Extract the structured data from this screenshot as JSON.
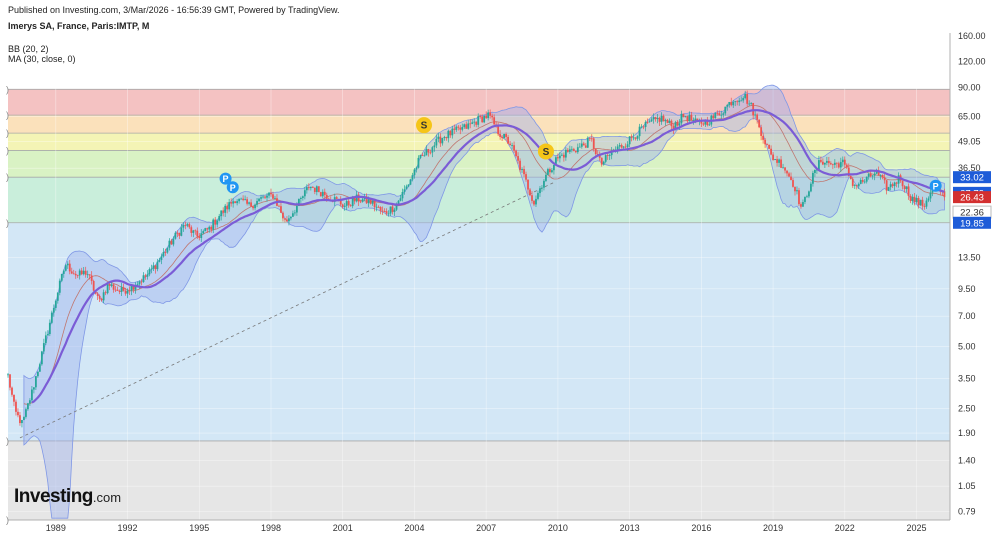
{
  "header": {
    "published": "Published on Investing.com, 3/Mar/2026 - 16:56:39 GMT, Powered by TradingView.",
    "symbol": "Imerys SA, France, Paris:IMTP, M",
    "indicators": [
      "BB (20, 2)",
      "MA (30, close, 0)"
    ]
  },
  "logo": {
    "text": "Investing",
    "suffix": ".com"
  },
  "colors": {
    "candle_up": "#26a69a",
    "candle_down": "#ef5350",
    "ma_line": "#7b5cd6",
    "bb_fill": "#9fb3ee",
    "bb_line": "#7f97e6",
    "trendline": "#777777",
    "badge_price": "#d32f2f",
    "badge_blue": "#1e5cd8",
    "signal_s": "#f5c518",
    "signal_p": "#2196f3"
  },
  "chart_data": {
    "type": "candlestick",
    "y_scale": "log",
    "ylim": [
      0.72,
      165
    ],
    "x_range": [
      1987.0,
      2026.4
    ],
    "x_ticks": [
      "1989",
      "1992",
      "1995",
      "1998",
      "2001",
      "2004",
      "2007",
      "2010",
      "2013",
      "2016",
      "2019",
      "2022",
      "2025"
    ],
    "x_tick_values": [
      1989,
      1992,
      1995,
      1998,
      2001,
      2004,
      2007,
      2010,
      2013,
      2016,
      2019,
      2022,
      2025
    ],
    "y_ticks": [
      "160.00",
      "120.00",
      "90.00",
      "65.00",
      "49.05",
      "36.50",
      "13.50",
      "9.50",
      "7.00",
      "5.00",
      "3.50",
      "2.50",
      "1.90",
      "1.40",
      "1.05",
      "0.79"
    ],
    "y_tick_values": [
      160,
      120,
      90,
      65,
      49.05,
      36.5,
      13.5,
      9.5,
      7,
      5,
      3.5,
      2.5,
      1.9,
      1.4,
      1.05,
      0.79
    ],
    "price_path": [
      [
        1987.0,
        3.6
      ],
      [
        1987.3,
        2.4
      ],
      [
        1987.6,
        2.1
      ],
      [
        1988.0,
        3.0
      ],
      [
        1988.5,
        5.0
      ],
      [
        1989.0,
        8.5
      ],
      [
        1989.4,
        12.5
      ],
      [
        1989.9,
        11.0
      ],
      [
        1990.3,
        11.5
      ],
      [
        1990.8,
        8.2
      ],
      [
        1991.2,
        10.0
      ],
      [
        1991.7,
        9.2
      ],
      [
        1992.2,
        9.8
      ],
      [
        1992.8,
        11.0
      ],
      [
        1993.3,
        13.0
      ],
      [
        1993.9,
        16.5
      ],
      [
        1994.4,
        19.5
      ],
      [
        1994.9,
        17.0
      ],
      [
        1995.4,
        18.5
      ],
      [
        1995.9,
        22.0
      ],
      [
        1996.5,
        26.0
      ],
      [
        1997.1,
        24.0
      ],
      [
        1997.6,
        26.0
      ],
      [
        1998.1,
        27.0
      ],
      [
        1998.6,
        20.0
      ],
      [
        1999.1,
        24.0
      ],
      [
        1999.6,
        30.0
      ],
      [
        2000.1,
        28.0
      ],
      [
        2000.6,
        26.0
      ],
      [
        2001.1,
        24.0
      ],
      [
        2001.6,
        26.0
      ],
      [
        2002.2,
        25.0
      ],
      [
        2002.7,
        22.0
      ],
      [
        2003.2,
        24.0
      ],
      [
        2003.7,
        30.0
      ],
      [
        2004.2,
        40.0
      ],
      [
        2004.7,
        46.0
      ],
      [
        2005.2,
        52.0
      ],
      [
        2005.7,
        55.0
      ],
      [
        2006.2,
        58.0
      ],
      [
        2006.7,
        63.0
      ],
      [
        2007.1,
        66.0
      ],
      [
        2007.5,
        55.0
      ],
      [
        2008.0,
        48.0
      ],
      [
        2008.5,
        35.0
      ],
      [
        2009.0,
        25.0
      ],
      [
        2009.4,
        32.0
      ],
      [
        2009.9,
        40.0
      ],
      [
        2010.4,
        44.0
      ],
      [
        2010.9,
        46.0
      ],
      [
        2011.4,
        50.0
      ],
      [
        2011.8,
        38.0
      ],
      [
        2012.3,
        44.0
      ],
      [
        2012.8,
        48.0
      ],
      [
        2013.3,
        54.0
      ],
      [
        2013.8,
        60.0
      ],
      [
        2014.3,
        64.0
      ],
      [
        2014.8,
        58.0
      ],
      [
        2015.3,
        66.0
      ],
      [
        2015.8,
        60.0
      ],
      [
        2016.3,
        62.0
      ],
      [
        2016.8,
        68.0
      ],
      [
        2017.3,
        78.0
      ],
      [
        2017.8,
        82.0
      ],
      [
        2018.1,
        72.0
      ],
      [
        2018.5,
        55.0
      ],
      [
        2018.9,
        42.0
      ],
      [
        2019.4,
        38.0
      ],
      [
        2019.9,
        30.0
      ],
      [
        2020.2,
        23.0
      ],
      [
        2020.6,
        32.0
      ],
      [
        2021.0,
        40.0
      ],
      [
        2021.5,
        38.0
      ],
      [
        2021.9,
        39.0
      ],
      [
        2022.4,
        30.0
      ],
      [
        2022.9,
        32.0
      ],
      [
        2023.3,
        35.0
      ],
      [
        2023.8,
        29.0
      ],
      [
        2024.3,
        33.0
      ],
      [
        2024.8,
        26.0
      ],
      [
        2025.3,
        24.0
      ],
      [
        2025.7,
        30.0
      ],
      [
        2026.17,
        26.43
      ]
    ],
    "fib_levels": [
      {
        "value": 88.0,
        "color": "#f4c2c2"
      },
      {
        "value": 66.0,
        "color": "#fbe1bb"
      },
      {
        "value": 54.0,
        "color": "#f4f4b5"
      },
      {
        "value": 44.5,
        "color": "#d9f2c4"
      },
      {
        "value": 33.02,
        "color": "#c9eedb"
      },
      {
        "value": 19.85,
        "color": "#d3e7f6"
      },
      {
        "value": 1.74,
        "color": "#e6e6e6"
      },
      {
        "value": 0.72,
        "color": "#d2d2f4"
      }
    ],
    "price_badges": [
      {
        "label": "33.02",
        "value": 33.02,
        "kind": "blue"
      },
      {
        "label": "27.72",
        "value": 27.72,
        "kind": "blue"
      },
      {
        "label": "26.43",
        "value": 26.43,
        "kind": "price"
      },
      {
        "label": "22.36",
        "value": 22.36,
        "kind": "light"
      },
      {
        "label": "19.85",
        "value": 19.85,
        "kind": "blue"
      }
    ],
    "trendline": [
      [
        1987.5,
        1.8
      ],
      [
        2009.8,
        31.0
      ]
    ],
    "signals": [
      {
        "type": "S",
        "x": 2004.4,
        "y": 59.0
      },
      {
        "type": "S",
        "x": 2009.5,
        "y": 44.0
      },
      {
        "type": "P",
        "x": 1996.1,
        "y": 32.5
      },
      {
        "type": "P",
        "x": 1996.4,
        "y": 29.5
      },
      {
        "type": "P",
        "x": 2025.8,
        "y": 30.0
      }
    ]
  }
}
